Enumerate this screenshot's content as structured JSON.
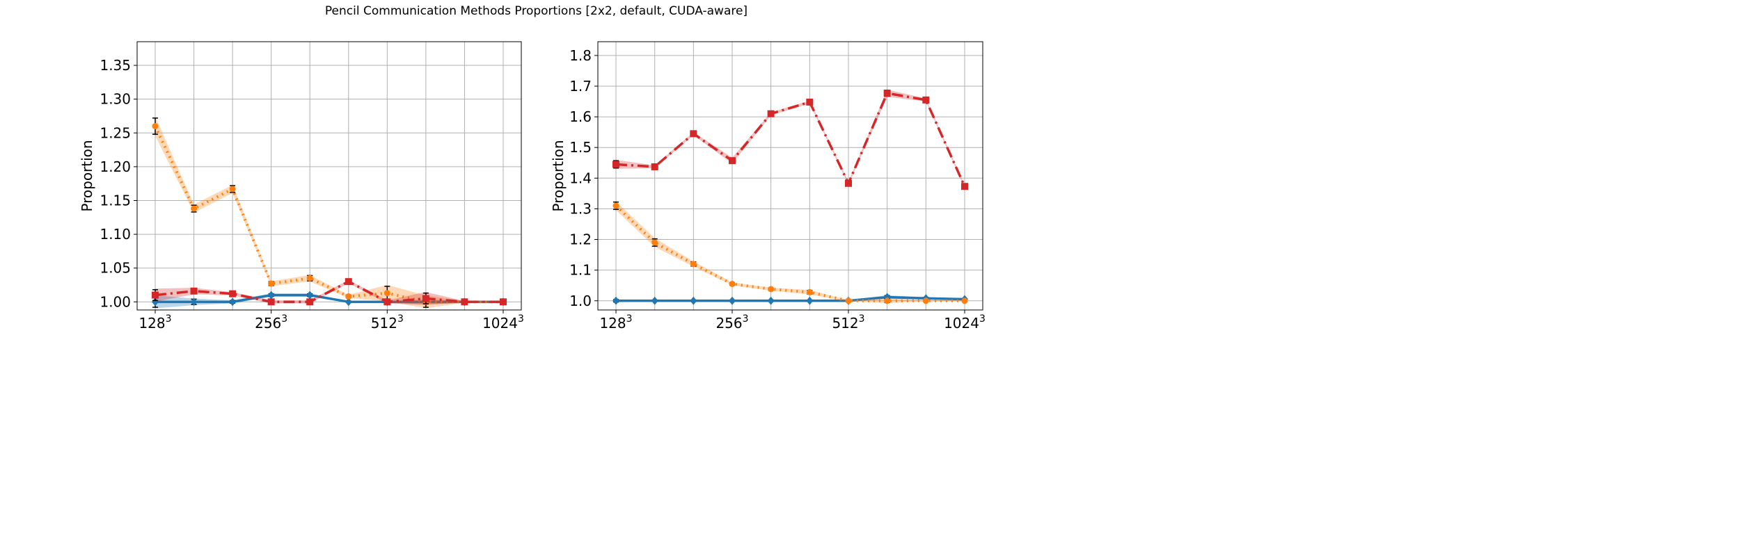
{
  "suptitle": "Pencil Communication Methods Proportions [2x2, default, CUDA-aware]",
  "colors": {
    "blue": "#1f77b4",
    "orange": "#ff7f0e",
    "red": "#d62728",
    "grid": "#b0b0b0",
    "errorbar": "#000000"
  },
  "chart_data": [
    {
      "type": "line",
      "title": "",
      "xlabel": "",
      "ylabel": "Proportion",
      "x_scale": "log2",
      "x_tick_labels": [
        "128",
        "256",
        "512",
        "1024"
      ],
      "x_tick_superscript": "3",
      "x_tick_values": [
        128,
        256,
        512,
        1024
      ],
      "x": [
        128,
        161.3,
        203.2,
        256,
        322.5,
        406.4,
        512,
        645.1,
        812.7,
        1024
      ],
      "yticks": [
        "1.00",
        "1.05",
        "1.10",
        "1.15",
        "1.20",
        "1.25",
        "1.30",
        "1.35"
      ],
      "ylim": [
        0.988,
        1.385
      ],
      "grid": true,
      "series": [
        {
          "color": "blue",
          "style": "solid",
          "marker": "diamond",
          "values": [
            1.0,
            1.0,
            1.0,
            1.01,
            1.01,
            1.0,
            1.0,
            1.0,
            1.0,
            1.0
          ],
          "err": [
            0.008,
            0.004,
            0.002,
            0.002,
            0.002,
            0.001,
            0.001,
            0.003,
            0.001,
            0.001
          ]
        },
        {
          "color": "orange",
          "style": "dotted",
          "marker": "circle",
          "values": [
            1.26,
            1.138,
            1.167,
            1.027,
            1.035,
            1.008,
            1.013,
            1.0,
            1.0,
            1.0
          ],
          "err": [
            0.012,
            0.005,
            0.005,
            0.003,
            0.004,
            0.002,
            0.01,
            0.008,
            0.001,
            0.001
          ]
        },
        {
          "color": "red",
          "style": "dashdot",
          "marker": "square",
          "values": [
            1.01,
            1.016,
            1.012,
            1.0,
            1.0,
            1.03,
            1.0,
            1.005,
            1.0,
            1.0
          ],
          "err": [
            0.008,
            0.004,
            0.002,
            0.002,
            0.002,
            0.002,
            0.002,
            0.008,
            0.001,
            0.001
          ]
        }
      ]
    },
    {
      "type": "line",
      "title": "",
      "xlabel": "",
      "ylabel": "Proportion",
      "x_scale": "log2",
      "x_tick_labels": [
        "128",
        "256",
        "512",
        "1024"
      ],
      "x_tick_superscript": "3",
      "x_tick_values": [
        128,
        256,
        512,
        1024
      ],
      "x": [
        128,
        161.3,
        203.2,
        256,
        322.5,
        406.4,
        512,
        645.1,
        812.7,
        1024
      ],
      "yticks": [
        "1.0",
        "1.1",
        "1.2",
        "1.3",
        "1.4",
        "1.5",
        "1.6",
        "1.7",
        "1.8"
      ],
      "ylim": [
        0.97,
        1.845
      ],
      "grid": true,
      "series": [
        {
          "color": "blue",
          "style": "solid",
          "marker": "diamond",
          "values": [
            1.0,
            1.0,
            1.0,
            1.0,
            1.0,
            1.0,
            1.0,
            1.012,
            1.008,
            1.005
          ],
          "err": [
            0.004,
            0.002,
            0.002,
            0.002,
            0.002,
            0.002,
            0.002,
            0.005,
            0.003,
            0.002
          ]
        },
        {
          "color": "orange",
          "style": "dotted",
          "marker": "circle",
          "values": [
            1.31,
            1.19,
            1.12,
            1.055,
            1.038,
            1.028,
            1.0,
            1.0,
            1.0,
            1.0
          ],
          "err": [
            0.012,
            0.012,
            0.007,
            0.004,
            0.004,
            0.006,
            0.002,
            0.006,
            0.002,
            0.002
          ]
        },
        {
          "color": "red",
          "style": "dashdot",
          "marker": "square",
          "values": [
            1.445,
            1.437,
            1.545,
            1.457,
            1.61,
            1.648,
            1.383,
            1.677,
            1.655,
            1.373
          ],
          "err": [
            0.012,
            0.004,
            0.004,
            0.008,
            0.004,
            0.004,
            0.004,
            0.01,
            0.004,
            0.004
          ]
        }
      ]
    }
  ]
}
